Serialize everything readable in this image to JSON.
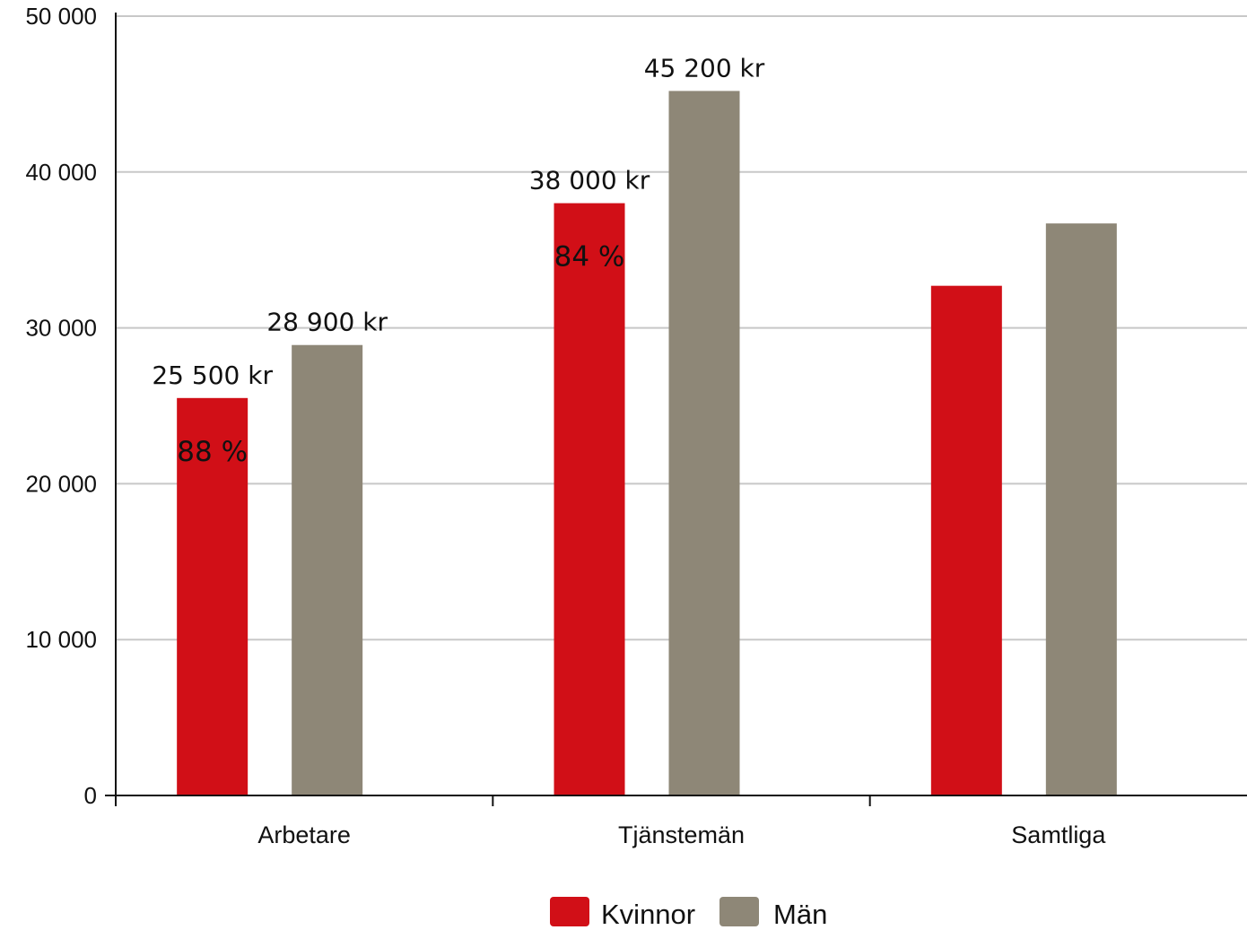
{
  "chart_data": {
    "type": "bar",
    "categories": [
      "Arbetare",
      "Tjänstemän",
      "Samtliga"
    ],
    "series": [
      {
        "name": "Kvinnor",
        "color": "#d10f17",
        "values": [
          25500,
          38000,
          32700
        ]
      },
      {
        "name": "Män",
        "color": "#8e8777",
        "values": [
          28900,
          45200,
          36700
        ]
      }
    ],
    "ylim": [
      0,
      50000
    ],
    "yticks": [
      0,
      10000,
      20000,
      30000,
      40000,
      50000
    ],
    "ytick_labels": [
      "0",
      "10 000",
      "20 000",
      "30 000",
      "40 000",
      "50 000"
    ],
    "grid": true,
    "legend_position": "bottom-center",
    "value_labels": [
      [
        "25 500 kr",
        "28 900 kr"
      ],
      [
        "38 000 kr",
        "45 200 kr"
      ],
      [
        "",
        ""
      ]
    ],
    "ratio_labels": [
      "88 %",
      "84 %",
      ""
    ]
  }
}
